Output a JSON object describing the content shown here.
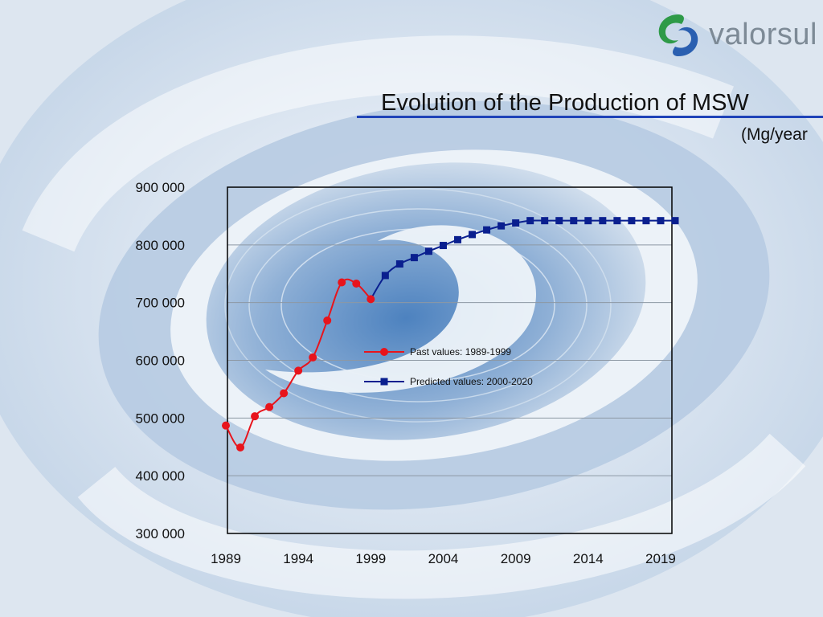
{
  "header": {
    "logo_text": "valorsul",
    "title": "Evolution of the Production of MSW",
    "subtitle": "(Mg/year"
  },
  "colors": {
    "past": "#e8141c",
    "predicted": "#0a1f8f",
    "title_rule": "#1f43b8"
  },
  "chart_data": {
    "type": "line",
    "title": "Evolution of the Production of MSW",
    "ylabel": "(Mg/year",
    "xlabel": "",
    "xlim": [
      1989,
      2020
    ],
    "ylim": [
      300000,
      900000
    ],
    "y_ticks": [
      300000,
      400000,
      500000,
      600000,
      700000,
      800000,
      900000
    ],
    "y_tick_labels": [
      "300 000",
      "400 000",
      "500 000",
      "600 000",
      "700 000",
      "800 000",
      "900 000"
    ],
    "x_ticks": [
      1989,
      1994,
      1999,
      2004,
      2009,
      2014,
      2019
    ],
    "x_tick_labels": [
      "1989",
      "1994",
      "1999",
      "2004",
      "2009",
      "2014",
      "2019"
    ],
    "grid": true,
    "legend_position": "center",
    "series": [
      {
        "name": "Past values: 1989-1999",
        "marker": "circle",
        "x": [
          1989,
          1990,
          1991,
          1992,
          1993,
          1994,
          1995,
          1996,
          1997,
          1998,
          1999
        ],
        "y": [
          487000,
          449000,
          503000,
          519000,
          543000,
          582000,
          605000,
          669000,
          735000,
          733000,
          706000
        ]
      },
      {
        "name": "Predicted values: 2000-2020",
        "marker": "square",
        "x": [
          2000,
          2001,
          2002,
          2003,
          2004,
          2005,
          2006,
          2007,
          2008,
          2009,
          2010,
          2011,
          2012,
          2013,
          2014,
          2015,
          2016,
          2017,
          2018,
          2019,
          2020
        ],
        "y": [
          747000,
          767000,
          778000,
          789000,
          799000,
          809000,
          818000,
          826000,
          833000,
          838000,
          842000,
          842000,
          842000,
          842000,
          842000,
          842000,
          842000,
          842000,
          842000,
          842000,
          842000
        ]
      }
    ]
  }
}
